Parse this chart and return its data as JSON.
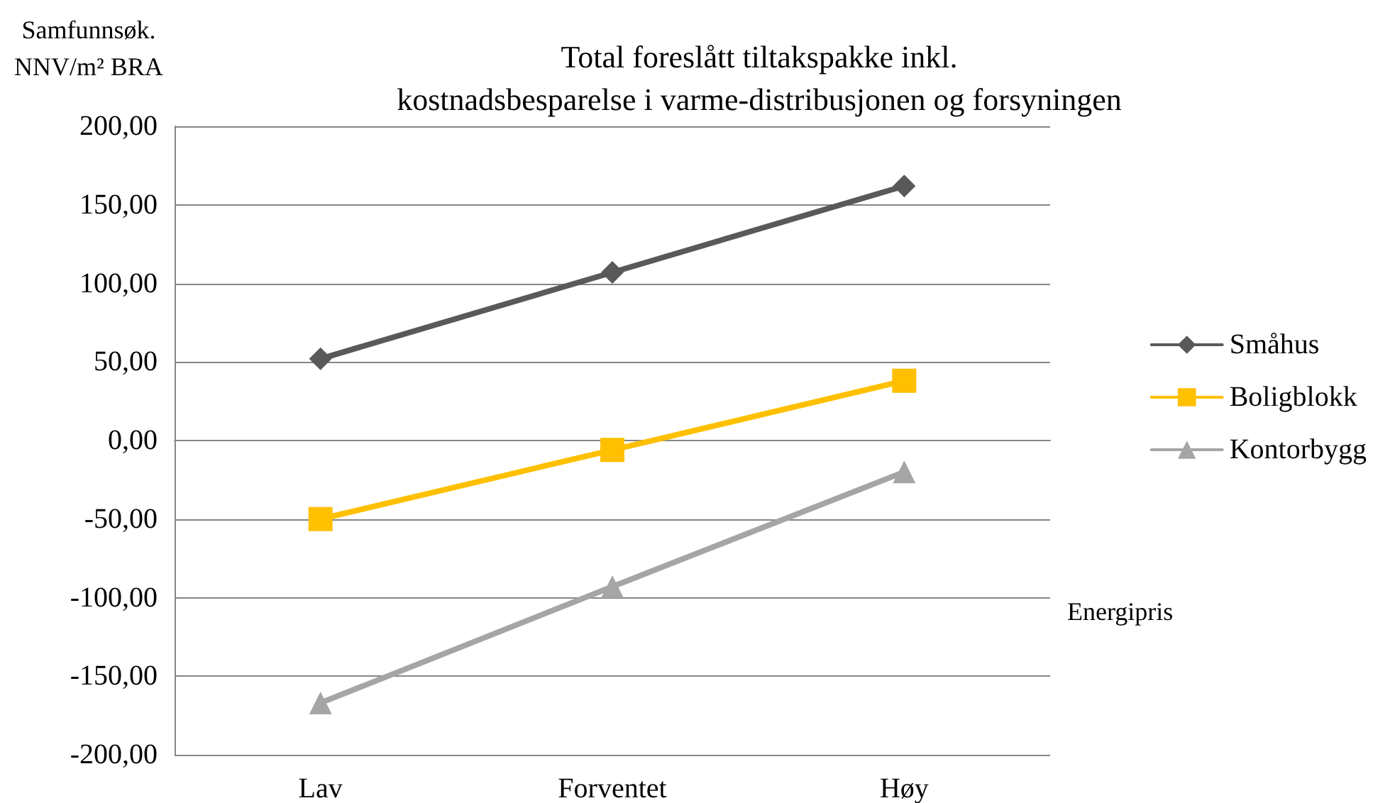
{
  "chart_data": {
    "type": "line",
    "title": "Total foreslått tiltakspakke inkl.\nkostnadsbesparelse i varme-distribusjonen og forsyningen",
    "ylabel": "Samfunnsøk.\nNNV/m² BRA",
    "xlabel": "Energipris",
    "categories": [
      "Lav",
      "Forventet",
      "Høy"
    ],
    "series": [
      {
        "name": "Småhus",
        "color": "#595959",
        "marker": "diamond",
        "values": [
          52,
          107,
          162
        ]
      },
      {
        "name": "Boligblokk",
        "color": "#ffc000",
        "marker": "square",
        "values": [
          -50,
          -6,
          38
        ]
      },
      {
        "name": "Kontorbygg",
        "color": "#a5a5a5",
        "marker": "triangle",
        "values": [
          -167,
          -93,
          -20
        ]
      }
    ],
    "ylim": [
      -200,
      200
    ],
    "yticks": [
      {
        "value": -200,
        "label": "-200,00"
      },
      {
        "value": -150,
        "label": "-150,00"
      },
      {
        "value": -100,
        "label": "-100,00"
      },
      {
        "value": -50,
        "label": "-50,00"
      },
      {
        "value": 0,
        "label": "0,00"
      },
      {
        "value": 50,
        "label": "50,00"
      },
      {
        "value": 100,
        "label": "100,00"
      },
      {
        "value": 150,
        "label": "150,00"
      },
      {
        "value": 200,
        "label": "200,00"
      }
    ],
    "grid": "y",
    "legend": "right",
    "line_style": "solid"
  }
}
